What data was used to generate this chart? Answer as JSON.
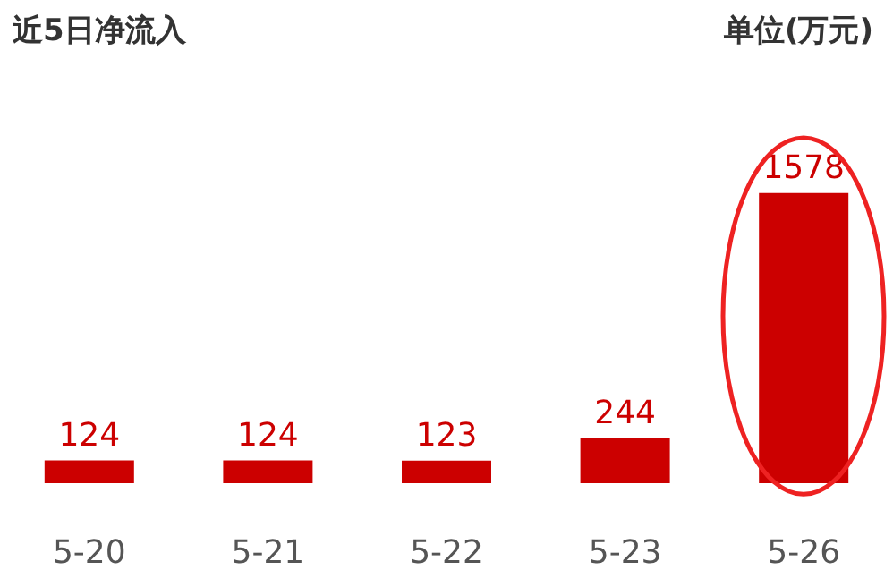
{
  "chart_data": {
    "type": "bar",
    "title": "近5日净流入",
    "annotations": [
      "单位(万元)"
    ],
    "categories": [
      "5-20",
      "5-21",
      "5-22",
      "5-23",
      "5-26"
    ],
    "values": [
      124,
      124,
      123,
      244,
      1578
    ],
    "color": "#cc0000",
    "data_labels": true
  }
}
